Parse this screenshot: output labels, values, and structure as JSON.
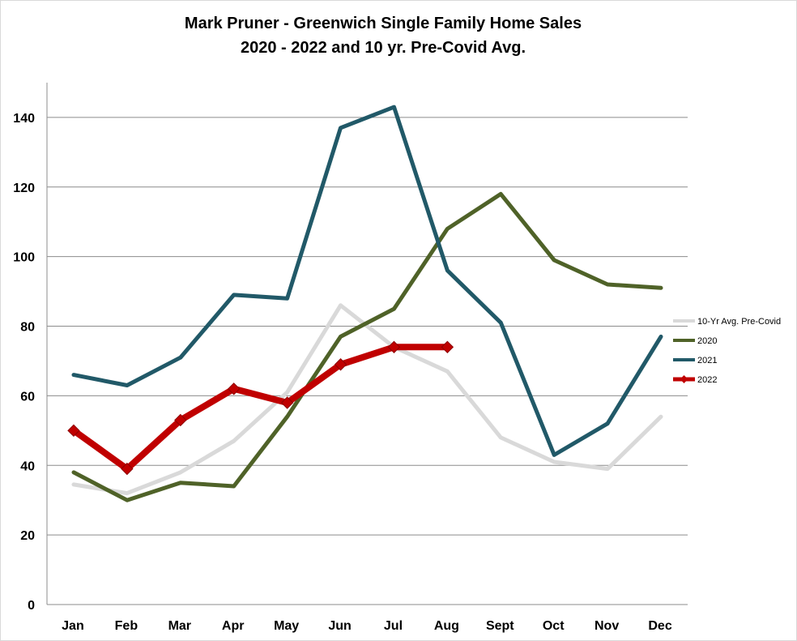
{
  "chart_data": {
    "type": "line",
    "title": "Mark Pruner - Greenwich Single Family Home Sales",
    "subtitle": "2020 - 2022 and 10 yr. Pre-Covid Avg.",
    "categories": [
      "Jan",
      "Feb",
      "Mar",
      "Apr",
      "May",
      "Jun",
      "Jul",
      "Aug",
      "Sept",
      "Oct",
      "Nov",
      "Dec"
    ],
    "ylim": [
      0,
      150
    ],
    "yticks": [
      0,
      20,
      40,
      60,
      80,
      100,
      120,
      140
    ],
    "grid": true,
    "legend_position": "right",
    "series": [
      {
        "name": "10-Yr Avg. Pre-Covid",
        "color": "#d9d9d9",
        "marker": "none",
        "values": [
          34.5,
          32,
          38,
          47,
          61,
          86,
          74,
          67,
          48,
          41,
          39,
          54
        ]
      },
      {
        "name": "2020",
        "color": "#4f6228",
        "marker": "none",
        "values": [
          38,
          30,
          35,
          34,
          54,
          77,
          85,
          108,
          118,
          99,
          92,
          91
        ]
      },
      {
        "name": "2021",
        "color": "#215968",
        "marker": "none",
        "values": [
          66,
          63,
          71,
          89,
          88,
          137,
          143,
          96,
          81,
          43,
          52,
          77
        ]
      },
      {
        "name": "2022",
        "color": "#c00000",
        "marker": "diamond",
        "values": [
          50,
          39,
          53,
          62,
          58,
          69,
          74,
          74,
          null,
          null,
          null,
          null
        ]
      }
    ]
  }
}
